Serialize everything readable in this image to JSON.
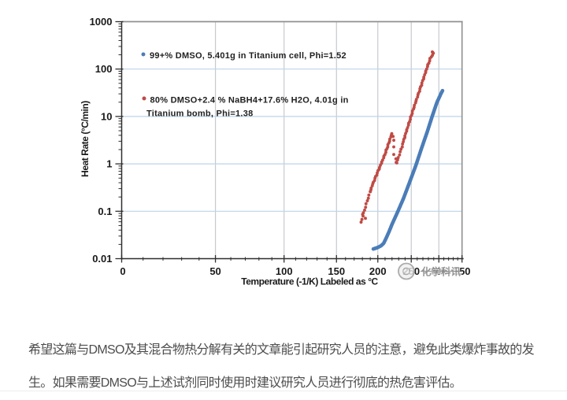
{
  "chart": {
    "y_axis": {
      "title": "Heat Rate (°C/min)",
      "ticks": [
        "1000",
        "100",
        "10",
        "1",
        "0.1",
        "0.01"
      ],
      "scale": "log"
    },
    "x_axis": {
      "title": "Temperature (-1/K) Labeled as °C",
      "ticks": [
        0,
        50,
        100,
        150,
        200,
        250,
        300,
        350
      ],
      "minor_step": 10,
      "scale": "reciprocal-kelvin"
    },
    "legend": {
      "items": [
        {
          "marker_color": "#4b7db8",
          "lines": [
            "99+% DMSO, 5.401g in Titanium cell, Phi=1.52"
          ]
        },
        {
          "marker_color": "#bf4b45",
          "lines": [
            "80% DMSO+2.4 % NaBH4+17.6% H2O, 4.01g in",
            "Titanium bomb, Phi=1.38"
          ]
        }
      ]
    },
    "style": {
      "grid_h": "#bed3ea",
      "grid_v": "#c6cace",
      "axis": "#2f2f2f",
      "border": "#909090",
      "tick_label": "#1a1a1a",
      "legend_text": "#1f1f1f"
    }
  },
  "chart_data": {
    "type": "scatter",
    "title": "",
    "xlabel": "Temperature (-1/K) Labeled as °C",
    "ylabel": "Heat Rate (°C/min)",
    "x_scale": "linear in -1/T(K), labeled in °C",
    "y_scale": "log",
    "xlim": [
      0,
      350
    ],
    "ylim": [
      0.01,
      1000
    ],
    "series": [
      {
        "name": "99+% DMSO, 5.401g in Titanium cell, Phi=1.52",
        "color": "#4b7db8",
        "dot_r": 2.3,
        "segments": [
          {
            "step": 1.2,
            "points": [
              [
                194,
                0.016
              ],
              [
                199,
                0.017
              ],
              [
                204,
                0.0185
              ],
              [
                208,
                0.021
              ],
              [
                212,
                0.028
              ],
              [
                216,
                0.038
              ],
              [
                220,
                0.053
              ],
              [
                228,
                0.094
              ],
              [
                237,
                0.18
              ],
              [
                247,
                0.4
              ],
              [
                257.5,
                0.91
              ],
              [
                268,
                2.2
              ],
              [
                278,
                4.8
              ],
              [
                287,
                10
              ],
              [
                296,
                19.5
              ],
              [
                304,
                30
              ],
              [
                308,
                36
              ]
            ]
          }
        ],
        "extra_points": []
      },
      {
        "name": "80% DMSO+2.4 % NaBH4+17.6% H2O, 4.01g in Titanium bomb, Phi=1.38",
        "color": "#bf4b45",
        "dot_r": 1.95,
        "segments": [
          {
            "step": 4.0,
            "points": [
              [
                178.4,
                0.059
              ],
              [
                181.3,
                0.088
              ],
              [
                184.3,
                0.132
              ],
              [
                187.7,
                0.2
              ],
              [
                190,
                0.26
              ]
            ]
          },
          {
            "step": 2.55,
            "points": [
              [
                190,
                0.26
              ],
              [
                192.3,
                0.344
              ],
              [
                197.5,
                0.55
              ],
              [
                203.4,
                0.91
              ],
              [
                210,
                1.62
              ],
              [
                215.6,
                2.82
              ],
              [
                219,
                4.05
              ],
              [
                220.7,
                4.63
              ]
            ]
          },
          {
            "step": 5.0,
            "points": [
              [
                221.6,
                3.8
              ],
              [
                222.3,
                3.1
              ],
              [
                222.8,
                2.6
              ]
            ]
          },
          {
            "step": 3.6,
            "points": [
              [
                227.2,
                1.05
              ],
              [
                230.4,
                1.49
              ],
              [
                234.4,
                2.13
              ],
              [
                237.2,
                2.94
              ]
            ]
          },
          {
            "step": 2.7,
            "points": [
              [
                237.2,
                2.94
              ],
              [
                240.6,
                4.2
              ],
              [
                246.1,
                7.15
              ],
              [
                252.6,
                13.2
              ],
              [
                260.2,
                25.6
              ],
              [
                269.4,
                55
              ],
              [
                277.9,
                111
              ],
              [
                283.7,
                169
              ],
              [
                287.1,
                197
              ],
              [
                290,
                215
              ]
            ]
          }
        ],
        "extra_points": [
          [
            180.3,
            0.086
          ],
          [
            183.8,
            0.071
          ],
          [
            222.6,
            2.28
          ],
          [
            222.6,
            1.58
          ],
          [
            225.8,
            1.28
          ],
          [
            226.2,
            1.08
          ],
          [
            288.5,
            222
          ],
          [
            287.3,
            230
          ]
        ]
      }
    ]
  },
  "watermark": {
    "text": "化学科讯",
    "color": "#8d8d8d"
  },
  "caption": {
    "lines": [
      "希望这篇与DMSO及其混合物热分解有关的文章能引起研究人员的注意，避免此类爆炸事故的发",
      "生。如果需要DMSO与上述试剂同时使用时建议研究人员进行彻底的热危害评估。"
    ],
    "color": "#4d4d4d"
  }
}
